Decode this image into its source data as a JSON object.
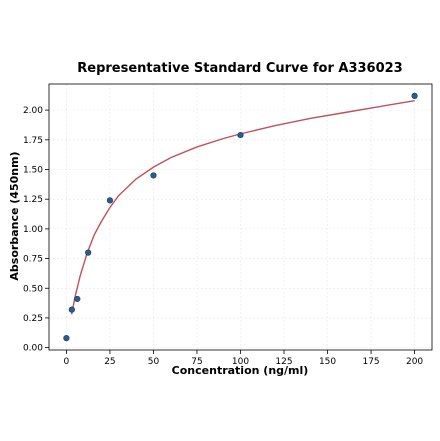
{
  "chart_data": {
    "type": "scatter",
    "title": "Representative Standard Curve for A336023",
    "xlabel": "Concentration (ng/ml)",
    "ylabel": "Absorbance (450nm)",
    "xlim": [
      -10,
      210
    ],
    "ylim": [
      -0.02,
      2.22
    ],
    "xticks": [
      0,
      25,
      50,
      75,
      100,
      125,
      150,
      175,
      200
    ],
    "xtick_labels": [
      "0",
      "25",
      "50",
      "75",
      "100",
      "125",
      "150",
      "175",
      "200"
    ],
    "yticks": [
      0.0,
      0.25,
      0.5,
      0.75,
      1.0,
      1.25,
      1.5,
      1.75,
      2.0
    ],
    "ytick_labels": [
      "0.00",
      "0.25",
      "0.50",
      "0.75",
      "1.00",
      "1.25",
      "1.50",
      "1.75",
      "2.00"
    ],
    "grid": true,
    "series": [
      {
        "type": "scatter",
        "color": "#2a5d8c",
        "x": [
          0,
          3.125,
          6.25,
          12.5,
          25,
          50,
          100,
          200
        ],
        "y": [
          0.08,
          0.32,
          0.41,
          0.8,
          1.24,
          1.45,
          1.79,
          2.12
        ]
      },
      {
        "type": "line",
        "color": "#c05060",
        "fit": "hyperbola",
        "x": [
          3,
          5,
          8,
          12,
          16,
          20,
          25,
          30,
          40,
          50,
          60,
          75,
          90,
          100,
          120,
          140,
          160,
          180,
          200
        ],
        "y": [
          0.28,
          0.43,
          0.61,
          0.8,
          0.95,
          1.06,
          1.18,
          1.28,
          1.42,
          1.52,
          1.6,
          1.69,
          1.76,
          1.8,
          1.87,
          1.93,
          1.98,
          2.03,
          2.08
        ]
      }
    ]
  }
}
